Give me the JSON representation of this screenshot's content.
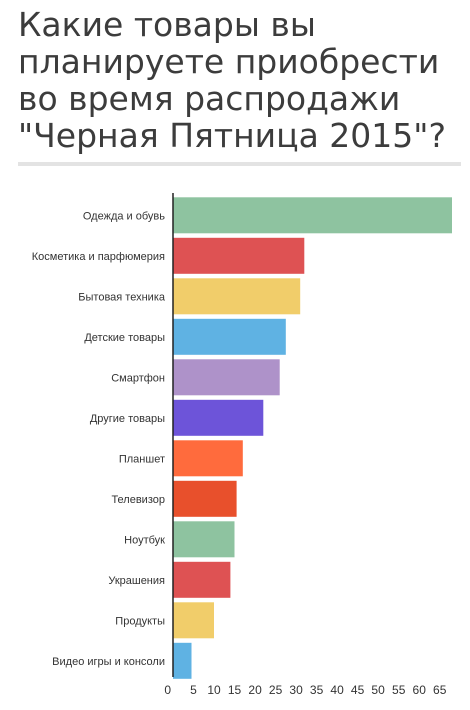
{
  "title_lines": [
    "Какие товары вы",
    "планируете приобрести",
    "во время распродажи",
    "\"Черная Пятница 2015\"?"
  ],
  "chart_data": {
    "type": "bar",
    "orientation": "horizontal",
    "title": "Какие товары вы планируете приобрести во время распродажи \"Черная Пятница 2015\"?",
    "categories": [
      "Одежда и обувь",
      "Косметика и парфюмерия",
      "Бытовая техника",
      "Детские товары",
      "Смартфон",
      "Другие товары",
      "Планшет",
      "Телевизор",
      "Ноутбук",
      "Украшения",
      "Продукты",
      "Видео игры и консоли"
    ],
    "values": [
      68,
      32,
      31,
      27.5,
      26,
      22,
      17,
      15.5,
      15,
      14,
      10,
      4.5
    ],
    "colors": [
      "#8ec3a0",
      "#de5253",
      "#f1cd6a",
      "#5fb2e3",
      "#ae92c9",
      "#6d54d9",
      "#ff6b3d",
      "#e8502c",
      "#8ec3a0",
      "#de5253",
      "#f1cd6a",
      "#5fb2e3"
    ],
    "xlim": [
      0,
      68
    ],
    "xticks": [
      0,
      5,
      10,
      15,
      20,
      25,
      30,
      35,
      40,
      45,
      50,
      55,
      60,
      65
    ],
    "grid": false,
    "legend": "none"
  }
}
